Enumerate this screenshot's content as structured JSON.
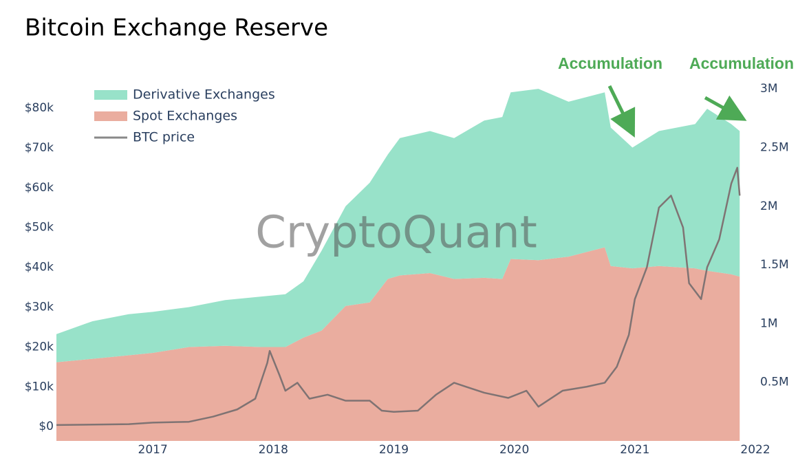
{
  "chart_data": {
    "type": "stacked-area-line",
    "title": "Bitcoin Exchange Reserve",
    "watermark": "CryptoQuant",
    "annotations": [
      "Accumulation",
      "Accumulation"
    ],
    "legend": "top-left",
    "xlim": [
      2016.2,
      2021.88
    ],
    "xticks": [
      2017,
      2018,
      2019,
      2020,
      2021,
      2022
    ],
    "ylim": [
      -3600,
      90700
    ],
    "yticks": [
      {
        "value": 0,
        "label": "$0"
      },
      {
        "value": 10000,
        "label": "$10k"
      },
      {
        "value": 20000,
        "label": "$20k"
      },
      {
        "value": 30000,
        "label": "$30k"
      },
      {
        "value": 40000,
        "label": "$40k"
      },
      {
        "value": 50000,
        "label": "$50k"
      },
      {
        "value": 60000,
        "label": "$60k"
      },
      {
        "value": 70000,
        "label": "$70k"
      },
      {
        "value": 80000,
        "label": "$80k"
      }
    ],
    "y2lim": [
      0,
      3200000
    ],
    "y2ticks": [
      {
        "value": 500000,
        "label": "0.5M"
      },
      {
        "value": 1000000,
        "label": "1M"
      },
      {
        "value": 1500000,
        "label": "1.5M"
      },
      {
        "value": 2000000,
        "label": "2M"
      },
      {
        "value": 2500000,
        "label": "2.5M"
      },
      {
        "value": 3000000,
        "label": "3M"
      }
    ],
    "series": [
      {
        "name": "Spot Exchanges",
        "color": "#eaad9f",
        "axis": "y2",
        "x": [
          2016.2,
          2016.5,
          2016.8,
          2017.0,
          2017.3,
          2017.6,
          2017.9,
          2018.1,
          2018.25,
          2018.4,
          2018.6,
          2018.8,
          2018.95,
          2019.05,
          2019.3,
          2019.5,
          2019.75,
          2019.9,
          2019.97,
          2020.2,
          2020.45,
          2020.75,
          2020.8,
          2020.98,
          2021.2,
          2021.5,
          2021.6,
          2021.8,
          2021.87
        ],
        "values": [
          670000,
          700000,
          730000,
          750000,
          800000,
          810000,
          800000,
          800000,
          880000,
          940000,
          1150000,
          1180000,
          1380000,
          1410000,
          1430000,
          1380000,
          1390000,
          1380000,
          1550000,
          1540000,
          1570000,
          1650000,
          1490000,
          1470000,
          1490000,
          1470000,
          1450000,
          1420000,
          1400000
        ]
      },
      {
        "name": "Derivative Exchanges",
        "color": "#98e2c9",
        "axis": "y2",
        "x": [
          2016.2,
          2016.5,
          2016.8,
          2017.0,
          2017.3,
          2017.6,
          2017.9,
          2018.1,
          2018.25,
          2018.4,
          2018.6,
          2018.8,
          2018.95,
          2019.05,
          2019.3,
          2019.5,
          2019.75,
          2019.9,
          2019.97,
          2020.2,
          2020.45,
          2020.75,
          2020.8,
          2020.98,
          2021.2,
          2021.5,
          2021.6,
          2021.8,
          2021.87
        ],
        "values": [
          240000,
          320000,
          350000,
          350000,
          340000,
          390000,
          430000,
          450000,
          480000,
          680000,
          850000,
          1020000,
          1060000,
          1170000,
          1210000,
          1200000,
          1340000,
          1380000,
          1420000,
          1460000,
          1320000,
          1320000,
          1180000,
          1030000,
          1150000,
          1230000,
          1380000,
          1280000,
          1240000
        ]
      },
      {
        "name": "BTC price",
        "color": "#7f7373",
        "x": [
          2016.2,
          2016.8,
          2017.0,
          2017.3,
          2017.5,
          2017.7,
          2017.85,
          2017.95,
          2017.97,
          2018.05,
          2018.1,
          2018.2,
          2018.3,
          2018.45,
          2018.6,
          2018.8,
          2018.9,
          2019.0,
          2019.2,
          2019.35,
          2019.5,
          2019.6,
          2019.75,
          2019.95,
          2020.1,
          2020.2,
          2020.4,
          2020.6,
          2020.75,
          2020.85,
          2020.95,
          2021.0,
          2021.1,
          2021.2,
          2021.3,
          2021.4,
          2021.45,
          2021.55,
          2021.6,
          2021.7,
          2021.8,
          2021.85,
          2021.87
        ],
        "values": [
          400,
          600,
          1000,
          1200,
          2500,
          4300,
          7000,
          16000,
          19000,
          13000,
          9000,
          11000,
          7000,
          8000,
          6500,
          6500,
          4000,
          3700,
          4000,
          8000,
          11000,
          10000,
          8500,
          7200,
          9000,
          5000,
          9000,
          10000,
          11000,
          15000,
          23000,
          32000,
          40000,
          55000,
          58000,
          50000,
          36000,
          32000,
          40000,
          47000,
          61000,
          65000,
          58000
        ]
      }
    ]
  }
}
